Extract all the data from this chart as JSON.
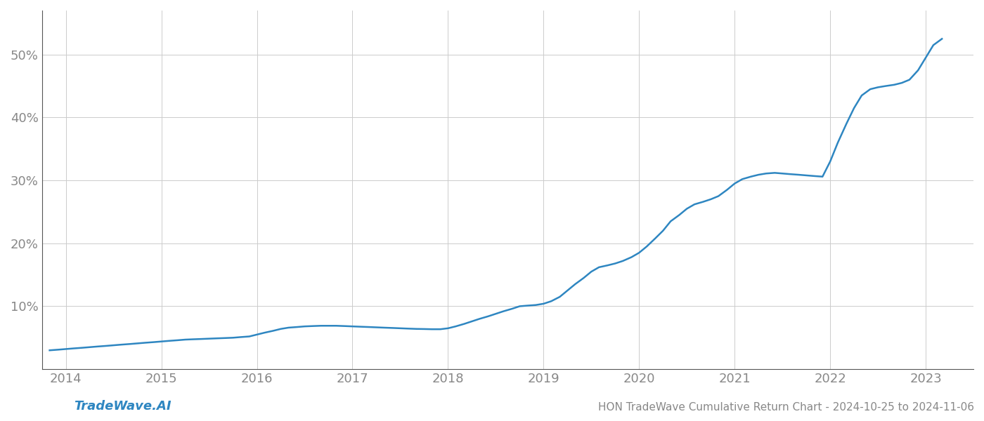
{
  "title": "HON TradeWave Cumulative Return Chart - 2024-10-25 to 2024-11-06",
  "watermark": "TradeWave.AI",
  "line_color": "#2e86c1",
  "background_color": "#ffffff",
  "grid_color": "#cccccc",
  "x_years": [
    2014,
    2015,
    2016,
    2017,
    2018,
    2019,
    2020,
    2021,
    2022,
    2023
  ],
  "x_values": [
    2013.83,
    2013.92,
    2014.0,
    2014.08,
    2014.17,
    2014.25,
    2014.33,
    2014.42,
    2014.5,
    2014.58,
    2014.67,
    2014.75,
    2014.83,
    2014.92,
    2015.0,
    2015.08,
    2015.17,
    2015.25,
    2015.33,
    2015.42,
    2015.5,
    2015.58,
    2015.67,
    2015.75,
    2015.83,
    2015.92,
    2016.0,
    2016.08,
    2016.17,
    2016.25,
    2016.33,
    2016.42,
    2016.5,
    2016.58,
    2016.67,
    2016.75,
    2016.83,
    2016.92,
    2017.0,
    2017.08,
    2017.17,
    2017.25,
    2017.33,
    2017.42,
    2017.5,
    2017.58,
    2017.67,
    2017.75,
    2017.83,
    2017.92,
    2018.0,
    2018.08,
    2018.17,
    2018.25,
    2018.33,
    2018.42,
    2018.5,
    2018.58,
    2018.67,
    2018.75,
    2018.83,
    2018.92,
    2019.0,
    2019.08,
    2019.17,
    2019.25,
    2019.33,
    2019.42,
    2019.5,
    2019.58,
    2019.67,
    2019.75,
    2019.83,
    2019.92,
    2020.0,
    2020.08,
    2020.17,
    2020.25,
    2020.33,
    2020.42,
    2020.5,
    2020.58,
    2020.67,
    2020.75,
    2020.83,
    2020.92,
    2021.0,
    2021.08,
    2021.17,
    2021.25,
    2021.33,
    2021.42,
    2021.5,
    2021.58,
    2021.67,
    2021.75,
    2021.83,
    2021.92,
    2022.0,
    2022.08,
    2022.17,
    2022.25,
    2022.33,
    2022.42,
    2022.5,
    2022.58,
    2022.67,
    2022.75,
    2022.83,
    2022.92,
    2023.0,
    2023.08,
    2023.17
  ],
  "y_values": [
    3.0,
    3.1,
    3.2,
    3.3,
    3.4,
    3.5,
    3.6,
    3.7,
    3.8,
    3.9,
    4.0,
    4.1,
    4.2,
    4.3,
    4.4,
    4.5,
    4.6,
    4.7,
    4.75,
    4.8,
    4.85,
    4.9,
    4.95,
    5.0,
    5.1,
    5.2,
    5.5,
    5.8,
    6.1,
    6.4,
    6.6,
    6.7,
    6.8,
    6.85,
    6.9,
    6.9,
    6.9,
    6.85,
    6.8,
    6.75,
    6.7,
    6.65,
    6.6,
    6.55,
    6.5,
    6.45,
    6.4,
    6.38,
    6.35,
    6.35,
    6.5,
    6.8,
    7.2,
    7.6,
    8.0,
    8.4,
    8.8,
    9.2,
    9.6,
    10.0,
    10.1,
    10.2,
    10.4,
    10.8,
    11.5,
    12.5,
    13.5,
    14.5,
    15.5,
    16.2,
    16.5,
    16.8,
    17.2,
    17.8,
    18.5,
    19.5,
    20.8,
    22.0,
    23.5,
    24.5,
    25.5,
    26.2,
    26.6,
    27.0,
    27.5,
    28.5,
    29.5,
    30.2,
    30.6,
    30.9,
    31.1,
    31.2,
    31.1,
    31.0,
    30.9,
    30.8,
    30.7,
    30.6,
    33.0,
    36.0,
    39.0,
    41.5,
    43.5,
    44.5,
    44.8,
    45.0,
    45.2,
    45.5,
    46.0,
    47.5,
    49.5,
    51.5,
    52.5
  ],
  "ylim": [
    0,
    57
  ],
  "yticks": [
    10,
    20,
    30,
    40,
    50
  ],
  "xlim": [
    2013.75,
    2023.5
  ],
  "title_fontsize": 11,
  "tick_fontsize": 13,
  "watermark_fontsize": 13,
  "line_width": 1.8,
  "left_spine_color": "#555555",
  "bottom_spine_color": "#555555"
}
